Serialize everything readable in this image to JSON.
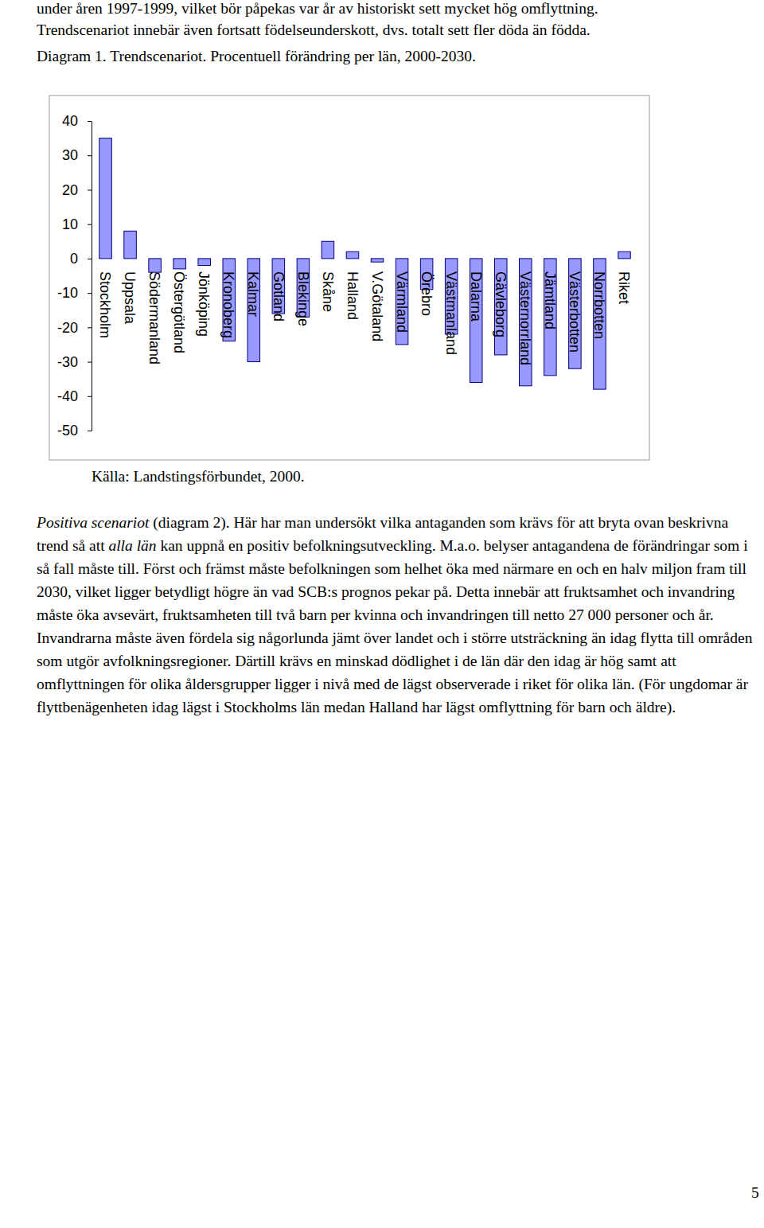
{
  "intro_lines": [
    "under åren 1997-1999, vilket bör påpekas var år av historiskt sett mycket hög omflyttning.",
    "Trendscenariot innebär även fortsatt födelseunderskott, dvs. totalt sett fler döda än födda."
  ],
  "chart_data": {
    "type": "bar",
    "title": "Diagram 1. Trendscenariot. Procentuell förändring per län, 2000-2030.",
    "categories": [
      "Stockholm",
      "Uppsala",
      "Södermanland",
      "Östergötland",
      "Jönköping",
      "Kronoberg",
      "Kalmar",
      "Gotland",
      "Blekinge",
      "Skåne",
      "Halland",
      "V.Götaland",
      "Värmland",
      "Örebro",
      "Västmanland",
      "Dalarna",
      "Gävleborg",
      "Västernorrland",
      "Jämtland",
      "Västerbotten",
      "Norrbotten",
      "Riket"
    ],
    "values": [
      35,
      8,
      -4,
      -3,
      -2,
      -24,
      -30,
      -16,
      -17,
      5,
      2,
      -1,
      -25,
      -9,
      -22,
      -36,
      -28,
      -37,
      -34,
      -32,
      -38,
      2
    ],
    "color": "#9999ff",
    "ylim": [
      -50,
      40
    ],
    "yticks": [
      -50,
      -40,
      -30,
      -20,
      -10,
      0,
      10,
      20,
      30,
      40
    ],
    "grid": false
  },
  "source": "Källa: Landstingsförbundet, 2000.",
  "paragraph": [
    {
      "text": "Positiva scenariot",
      "italic": true
    },
    {
      "text": " (diagram 2). Här har man undersökt vilka antaganden som krävs för att bryta ovan beskrivna trend så att ",
      "italic": false
    },
    {
      "text": "alla län",
      "italic": true
    },
    {
      "text": " kan uppnå en positiv befolkningsutveckling. M.a.o. belyser antagandena de förändringar som i så fall måste till. Först och främst måste befolkningen som helhet öka med närmare en och en halv miljon fram till 2030, vilket ligger betydligt högre än vad SCB:s prognos pekar på. Detta innebär att fruktsamhet och invandring måste öka avsevärt, fruktsamheten till två barn per kvinna och invandringen till netto 27 000 personer och år. Invandrarna måste även fördela sig någorlunda jämt över landet och i större utsträckning än idag flytta till områden som utgör avfolkningsregioner. Därtill krävs en minskad dödlighet i de län där den idag är hög samt att omflyttningen för olika åldersgrupper ligger i nivå med de lägst observerade i riket för olika län. (För ungdomar är flyttbenägenheten idag lägst i Stockholms län medan Halland har lägst omflyttning för barn och äldre).",
      "italic": false
    }
  ],
  "page_number": "5"
}
